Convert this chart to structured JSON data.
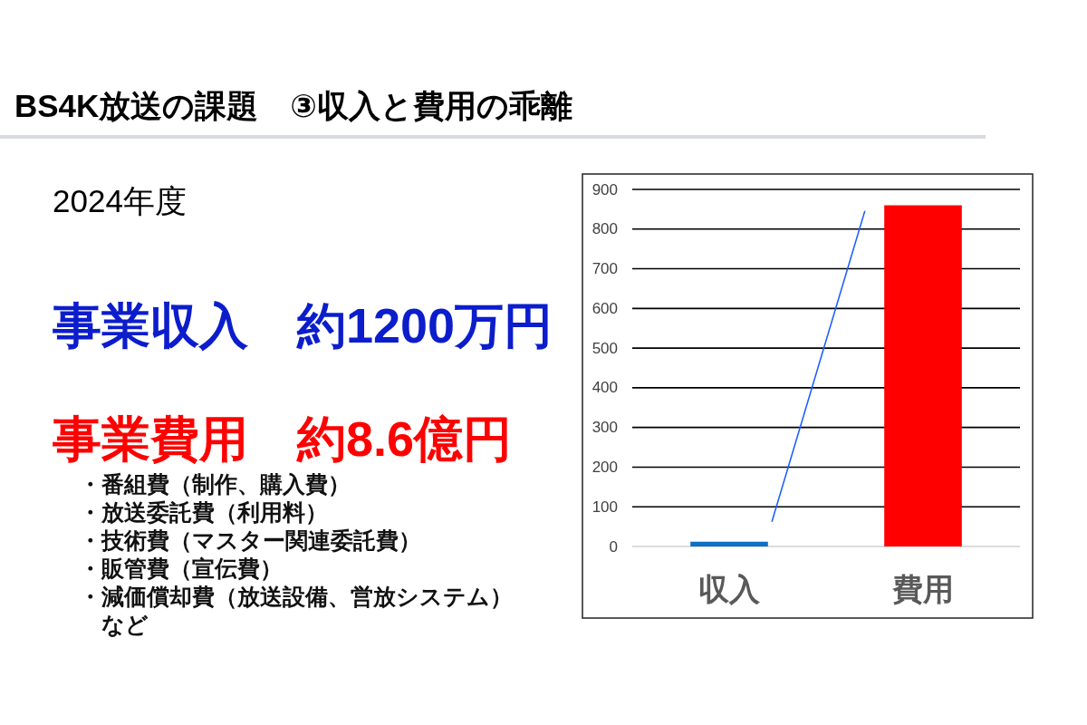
{
  "chart_data": {
    "type": "bar",
    "title": "BS4K放送の課題　③収入と費用の乖離",
    "subtitle": "2024年度",
    "categories": [
      "収入",
      "費用"
    ],
    "values": [
      12,
      860
    ],
    "colors": [
      "#0f6fc6",
      "#ff0000"
    ],
    "ylim": [
      0,
      900
    ],
    "yticks": [
      0,
      100,
      200,
      300,
      400,
      500,
      600,
      700,
      800,
      900
    ],
    "grid": "y",
    "annotations": [
      "事業収入　約1200万円",
      "事業費用　約8.6億円",
      "・番組費（制作、購入費）",
      "・放送委託費（利用料）",
      "・技術費（マスター関連委託費）",
      "・販管費（宣伝費）",
      "・減価償却費（放送設備、営放システム）など"
    ]
  }
}
